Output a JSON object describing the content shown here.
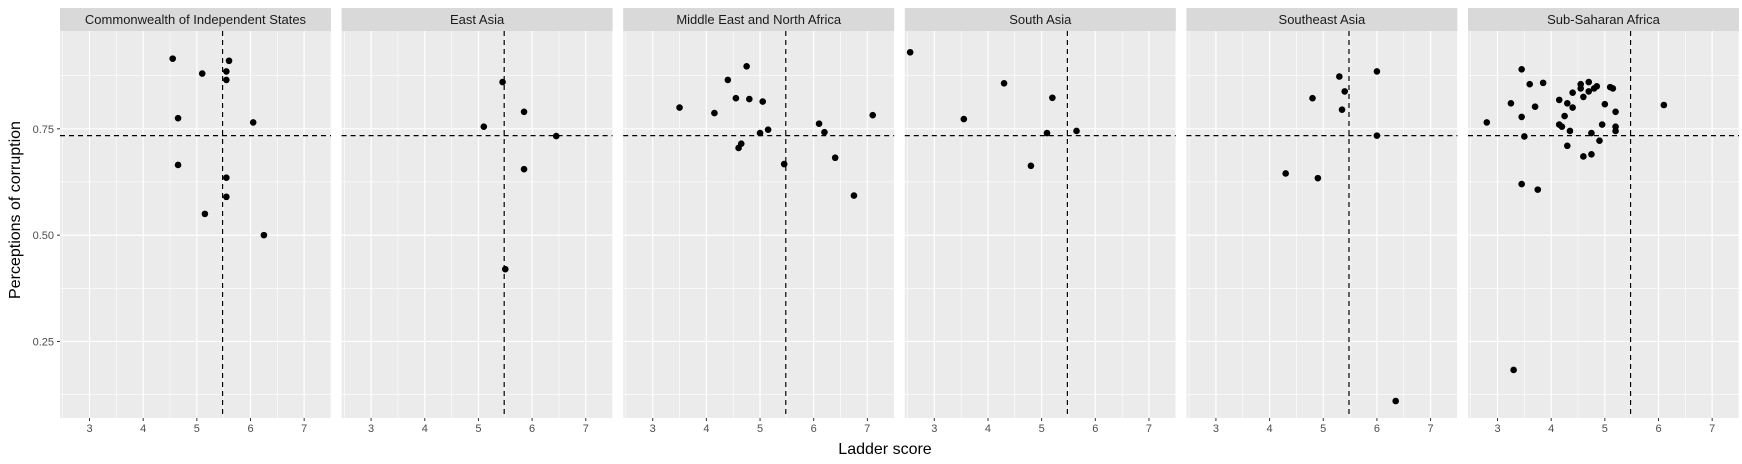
{
  "chart_data": {
    "type": "scatter",
    "xlabel": "Ladder score",
    "ylabel": "Perceptions of corruption",
    "xlim": [
      2.45,
      7.5
    ],
    "ylim": [
      0.07,
      0.98
    ],
    "x_ticks": [
      3,
      4,
      5,
      6,
      7
    ],
    "y_ticks": [
      0.25,
      0.5,
      0.75
    ],
    "y_tick_labels": [
      "0.25",
      "0.50",
      "0.75"
    ],
    "vline_x": 5.48,
    "hline_y": 0.734,
    "grid": true,
    "colors": {
      "panel_bg": "#ebebeb",
      "strip_bg": "#d9d9d9",
      "grid": "#ffffff",
      "point": "#000000"
    },
    "panels": [
      {
        "title": "Commonwealth of Independent States",
        "points": [
          [
            4.55,
            0.915
          ],
          [
            4.65,
            0.775
          ],
          [
            4.65,
            0.665
          ],
          [
            5.1,
            0.88
          ],
          [
            5.15,
            0.55
          ],
          [
            5.55,
            0.885
          ],
          [
            5.55,
            0.865
          ],
          [
            5.6,
            0.91
          ],
          [
            5.55,
            0.635
          ],
          [
            5.55,
            0.59
          ],
          [
            6.05,
            0.765
          ],
          [
            6.25,
            0.5
          ]
        ]
      },
      {
        "title": "East Asia",
        "points": [
          [
            5.1,
            0.755
          ],
          [
            5.45,
            0.86
          ],
          [
            5.5,
            0.42
          ],
          [
            5.85,
            0.79
          ],
          [
            5.85,
            0.655
          ],
          [
            6.45,
            0.733
          ]
        ]
      },
      {
        "title": "Middle East and North Africa",
        "points": [
          [
            3.5,
            0.8
          ],
          [
            4.15,
            0.787
          ],
          [
            4.4,
            0.865
          ],
          [
            4.55,
            0.822
          ],
          [
            4.6,
            0.705
          ],
          [
            4.65,
            0.715
          ],
          [
            4.75,
            0.897
          ],
          [
            4.8,
            0.82
          ],
          [
            5.0,
            0.74
          ],
          [
            5.05,
            0.814
          ],
          [
            5.15,
            0.748
          ],
          [
            5.45,
            0.667
          ],
          [
            6.1,
            0.762
          ],
          [
            6.2,
            0.742
          ],
          [
            6.4,
            0.682
          ],
          [
            6.75,
            0.593
          ],
          [
            7.1,
            0.782
          ]
        ]
      },
      {
        "title": "South Asia",
        "points": [
          [
            2.55,
            0.93
          ],
          [
            3.55,
            0.773
          ],
          [
            4.3,
            0.857
          ],
          [
            4.8,
            0.663
          ],
          [
            5.1,
            0.74
          ],
          [
            5.2,
            0.823
          ],
          [
            5.65,
            0.745
          ]
        ]
      },
      {
        "title": "Southeast Asia",
        "points": [
          [
            4.3,
            0.645
          ],
          [
            4.8,
            0.822
          ],
          [
            4.9,
            0.634
          ],
          [
            5.3,
            0.873
          ],
          [
            5.35,
            0.795
          ],
          [
            5.4,
            0.838
          ],
          [
            6.0,
            0.885
          ],
          [
            6.0,
            0.734
          ],
          [
            6.35,
            0.11
          ]
        ]
      },
      {
        "title": "Sub-Saharan Africa",
        "points": [
          [
            2.8,
            0.765
          ],
          [
            3.25,
            0.81
          ],
          [
            3.3,
            0.183
          ],
          [
            3.45,
            0.778
          ],
          [
            3.45,
            0.89
          ],
          [
            3.5,
            0.732
          ],
          [
            3.45,
            0.62
          ],
          [
            3.6,
            0.855
          ],
          [
            3.7,
            0.802
          ],
          [
            3.75,
            0.607
          ],
          [
            3.85,
            0.858
          ],
          [
            4.15,
            0.818
          ],
          [
            4.15,
            0.76
          ],
          [
            4.2,
            0.755
          ],
          [
            4.25,
            0.78
          ],
          [
            4.3,
            0.81
          ],
          [
            4.3,
            0.71
          ],
          [
            4.35,
            0.745
          ],
          [
            4.4,
            0.835
          ],
          [
            4.4,
            0.8
          ],
          [
            4.55,
            0.855
          ],
          [
            4.55,
            0.845
          ],
          [
            4.6,
            0.685
          ],
          [
            4.6,
            0.825
          ],
          [
            4.7,
            0.86
          ],
          [
            4.7,
            0.838
          ],
          [
            4.75,
            0.74
          ],
          [
            4.75,
            0.69
          ],
          [
            4.8,
            0.845
          ],
          [
            4.85,
            0.85
          ],
          [
            4.9,
            0.722
          ],
          [
            4.95,
            0.76
          ],
          [
            5.0,
            0.808
          ],
          [
            5.1,
            0.848
          ],
          [
            5.15,
            0.845
          ],
          [
            5.2,
            0.745
          ],
          [
            5.2,
            0.79
          ],
          [
            5.2,
            0.755
          ],
          [
            6.1,
            0.806
          ]
        ]
      }
    ]
  }
}
